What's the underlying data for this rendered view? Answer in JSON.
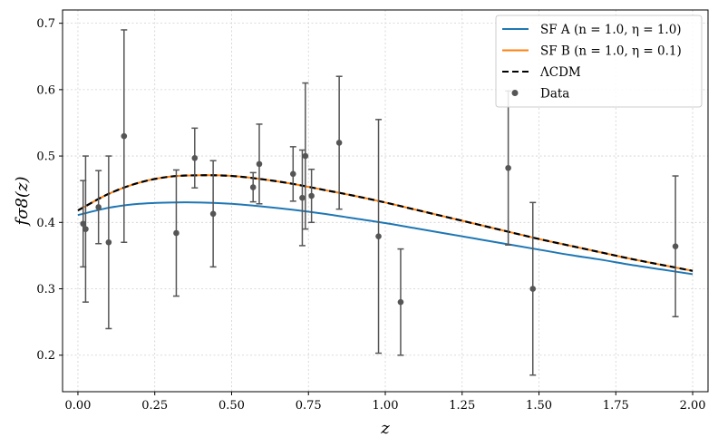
{
  "chart_data": {
    "type": "line",
    "title": "",
    "xlabel": "z",
    "ylabel": "fσ8(z)",
    "xlim": [
      -0.05,
      2.05
    ],
    "ylim": [
      0.145,
      0.72
    ],
    "grid": true,
    "legend_position": "top-right",
    "x_ticks": [
      0.0,
      0.25,
      0.5,
      0.75,
      1.0,
      1.25,
      1.5,
      1.75,
      2.0
    ],
    "x_tick_labels": [
      "0.00",
      "0.25",
      "0.50",
      "0.75",
      "1.00",
      "1.25",
      "1.50",
      "1.75",
      "2.00"
    ],
    "y_ticks": [
      0.2,
      0.3,
      0.4,
      0.5,
      0.6,
      0.7
    ],
    "y_tick_labels": [
      "0.2",
      "0.3",
      "0.4",
      "0.5",
      "0.6",
      "0.7"
    ],
    "x": [
      0.0,
      0.1,
      0.2,
      0.3,
      0.4,
      0.5,
      0.6,
      0.7,
      0.8,
      0.9,
      1.0,
      1.1,
      1.2,
      1.3,
      1.4,
      1.5,
      1.6,
      1.7,
      1.8,
      1.9,
      2.0
    ],
    "series": [
      {
        "name": "SF A (n = 1.0, η = 1.0)",
        "color": "#1f77b4",
        "style": "solid",
        "values": [
          0.411,
          0.422,
          0.428,
          0.43,
          0.43,
          0.428,
          0.424,
          0.419,
          0.413,
          0.406,
          0.399,
          0.391,
          0.383,
          0.375,
          0.367,
          0.359,
          0.351,
          0.344,
          0.336,
          0.329,
          0.322
        ]
      },
      {
        "name": "SF B (n = 1.0, η = 0.1)",
        "color": "#ff7f0e",
        "style": "solid",
        "values": [
          0.418,
          0.443,
          0.46,
          0.469,
          0.471,
          0.47,
          0.465,
          0.458,
          0.449,
          0.44,
          0.43,
          0.419,
          0.408,
          0.397,
          0.386,
          0.375,
          0.365,
          0.355,
          0.345,
          0.336,
          0.327
        ]
      },
      {
        "name": "ΛCDM",
        "color": "#000000",
        "style": "dashed",
        "values": [
          0.418,
          0.443,
          0.46,
          0.469,
          0.471,
          0.47,
          0.465,
          0.458,
          0.449,
          0.44,
          0.43,
          0.419,
          0.408,
          0.397,
          0.386,
          0.375,
          0.365,
          0.355,
          0.345,
          0.336,
          0.327
        ]
      }
    ],
    "data_points": {
      "name": "Data",
      "color": "#555555",
      "points": [
        {
          "x": 0.017,
          "y": 0.398,
          "err": 0.065
        },
        {
          "x": 0.025,
          "y": 0.39,
          "err": 0.11
        },
        {
          "x": 0.067,
          "y": 0.423,
          "err": 0.055
        },
        {
          "x": 0.1,
          "y": 0.37,
          "err": 0.13
        },
        {
          "x": 0.15,
          "y": 0.53,
          "err": 0.16
        },
        {
          "x": 0.32,
          "y": 0.384,
          "err": 0.095
        },
        {
          "x": 0.38,
          "y": 0.497,
          "err": 0.045
        },
        {
          "x": 0.44,
          "y": 0.413,
          "err": 0.08
        },
        {
          "x": 0.57,
          "y": 0.453,
          "err": 0.022
        },
        {
          "x": 0.59,
          "y": 0.488,
          "err": 0.06
        },
        {
          "x": 0.7,
          "y": 0.473,
          "err": 0.041
        },
        {
          "x": 0.73,
          "y": 0.437,
          "err": 0.072
        },
        {
          "x": 0.74,
          "y": 0.5,
          "err": 0.11
        },
        {
          "x": 0.76,
          "y": 0.44,
          "err": 0.04
        },
        {
          "x": 0.85,
          "y": 0.52,
          "err": 0.1
        },
        {
          "x": 0.978,
          "y": 0.379,
          "err": 0.176
        },
        {
          "x": 1.05,
          "y": 0.28,
          "err": 0.08
        },
        {
          "x": 1.4,
          "y": 0.482,
          "err": 0.116
        },
        {
          "x": 1.48,
          "y": 0.3,
          "err": 0.13
        },
        {
          "x": 1.944,
          "y": 0.364,
          "err": 0.106
        }
      ]
    },
    "legend": [
      {
        "label": "SF A (n = 1.0, η = 1.0)",
        "kind": "line",
        "color": "#1f77b4",
        "style": "solid"
      },
      {
        "label": "SF B (n = 1.0, η = 0.1)",
        "kind": "line",
        "color": "#ff7f0e",
        "style": "solid"
      },
      {
        "label": "ΛCDM",
        "kind": "line",
        "color": "#000000",
        "style": "dashed"
      },
      {
        "label": "Data",
        "kind": "marker",
        "color": "#555555",
        "style": "dot"
      }
    ]
  }
}
